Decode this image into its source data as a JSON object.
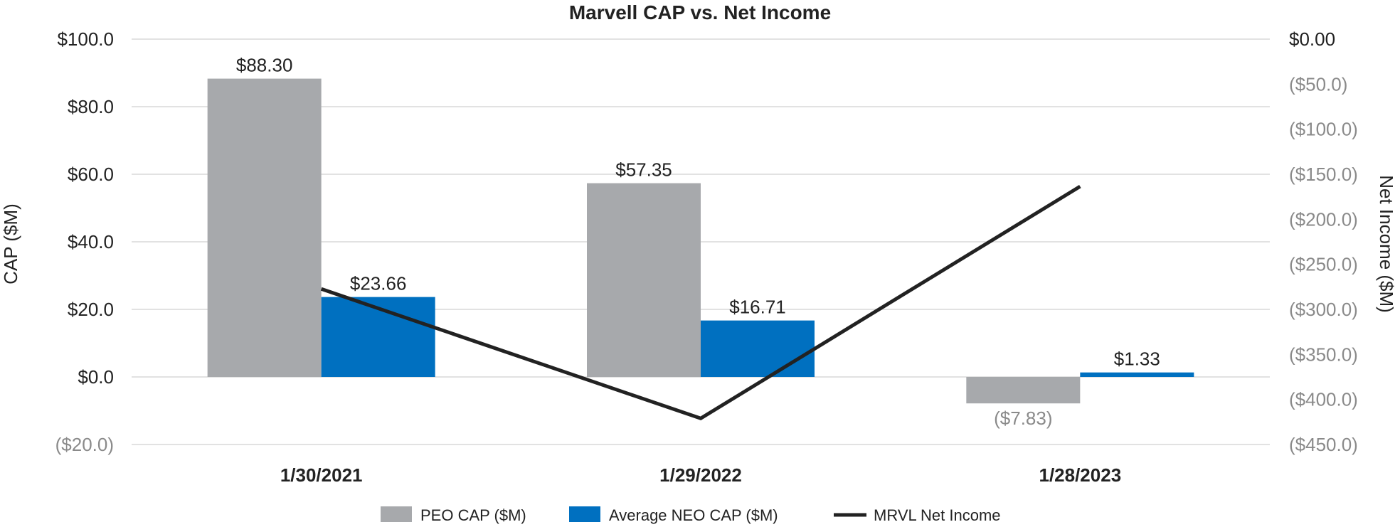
{
  "chart_data": {
    "type": "bar",
    "title": "Marvell CAP vs. Net Income",
    "categories": [
      "1/30/2021",
      "1/29/2022",
      "1/28/2023"
    ],
    "series": [
      {
        "name": "PEO CAP ($M)",
        "kind": "bar",
        "axis": "left",
        "color": "#a7a9ac",
        "values": [
          88.3,
          57.35,
          -7.83
        ],
        "labels": [
          "$88.30",
          "$57.35",
          "($7.83)"
        ]
      },
      {
        "name": "Average NEO CAP ($M)",
        "kind": "bar",
        "axis": "left",
        "color": "#0070c0",
        "values": [
          23.66,
          16.71,
          1.33
        ],
        "labels": [
          "$23.66",
          "$16.71",
          "$1.33"
        ]
      },
      {
        "name": "MRVL Net Income",
        "kind": "line",
        "axis": "right",
        "color": "#222222",
        "values": [
          -277.3,
          -421.0,
          -163.5
        ]
      }
    ],
    "ylabel": "CAP ($M)",
    "y2label": "Net Income ($M)",
    "ylim": [
      -20,
      100
    ],
    "y2lim": [
      -450,
      0
    ],
    "yticks": [
      100,
      80,
      60,
      40,
      20,
      0,
      -20
    ],
    "ytick_labels": [
      "$100.0",
      "$80.0",
      "$60.0",
      "$40.0",
      "$20.0",
      "$0.0",
      "($20.0)"
    ],
    "y2ticks": [
      0,
      -50,
      -100,
      -150,
      -200,
      -250,
      -300,
      -350,
      -400,
      -450
    ],
    "y2tick_labels": [
      "$0.00",
      "($50.0)",
      "($100.0)",
      "($150.0)",
      "($200.0)",
      "($250.0)",
      "($300.0)",
      "($350.0)",
      "($400.0)",
      "($450.0)"
    ],
    "legend_position": "bottom-center",
    "grid": true
  }
}
